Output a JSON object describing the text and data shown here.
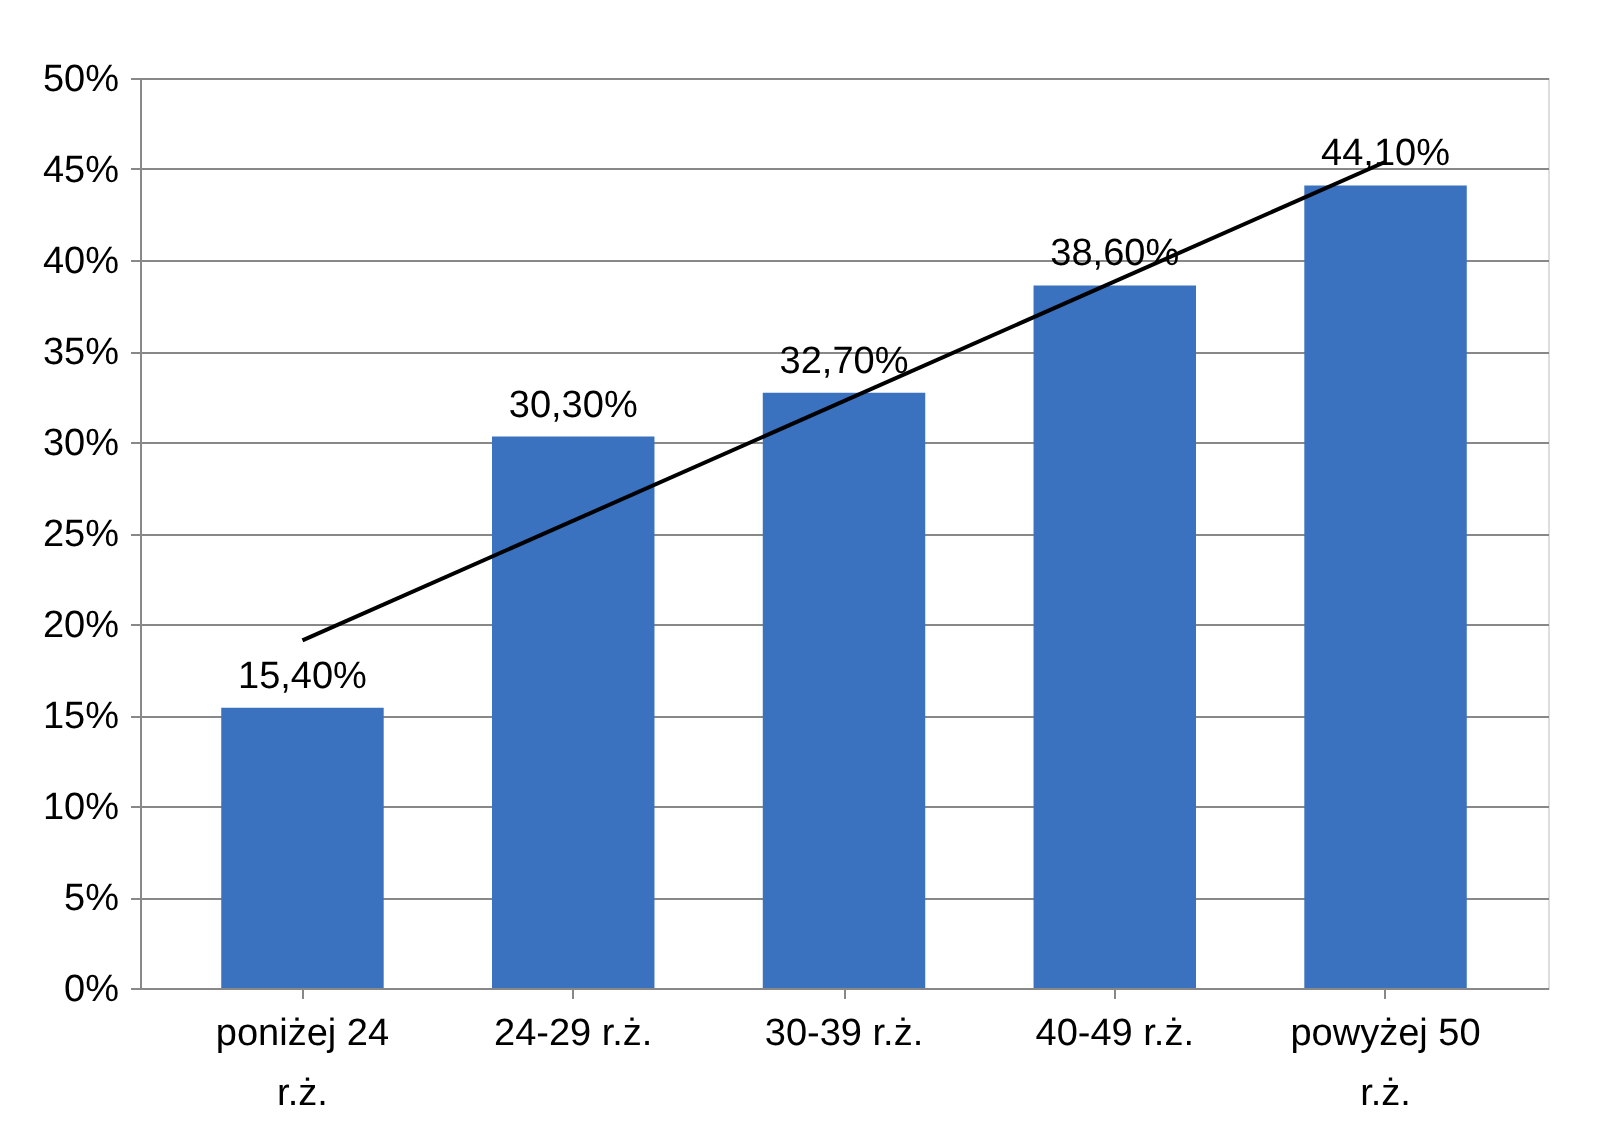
{
  "chart_data": {
    "type": "bar",
    "categories": [
      "poniżej 24 r.ż.",
      "24-29 r.ż.",
      "30-39 r.ż.",
      "40-49 r.ż.",
      "powyżej 50 r.ż."
    ],
    "series": [
      {
        "color": "#3a72c0",
        "values": [
          15.4,
          30.3,
          32.7,
          38.6,
          44.1
        ],
        "value_labels": [
          "15,40%",
          "30,30%",
          "32,70%",
          "38,60%",
          "44,10%"
        ]
      },
      {
        "type": "line",
        "color": "#000000",
        "x": [
          "poniżej 24 r.ż.",
          "powyżej 50 r.ż."
        ],
        "values": [
          19.1,
          45.4
        ]
      }
    ],
    "ylim": [
      0,
      50
    ],
    "yticks": [
      {
        "value": 0,
        "label": "0%"
      },
      {
        "value": 5,
        "label": "5%"
      },
      {
        "value": 10,
        "label": "10%"
      },
      {
        "value": 15,
        "label": "15%"
      },
      {
        "value": 20,
        "label": "20%"
      },
      {
        "value": 25,
        "label": "25%"
      },
      {
        "value": 30,
        "label": "30%"
      },
      {
        "value": 35,
        "label": "35%"
      },
      {
        "value": 40,
        "label": "40%"
      },
      {
        "value": 45,
        "label": "45%"
      },
      {
        "value": 50,
        "label": "50%"
      }
    ],
    "grid": "y",
    "marker": "none",
    "line_style": "solid"
  }
}
